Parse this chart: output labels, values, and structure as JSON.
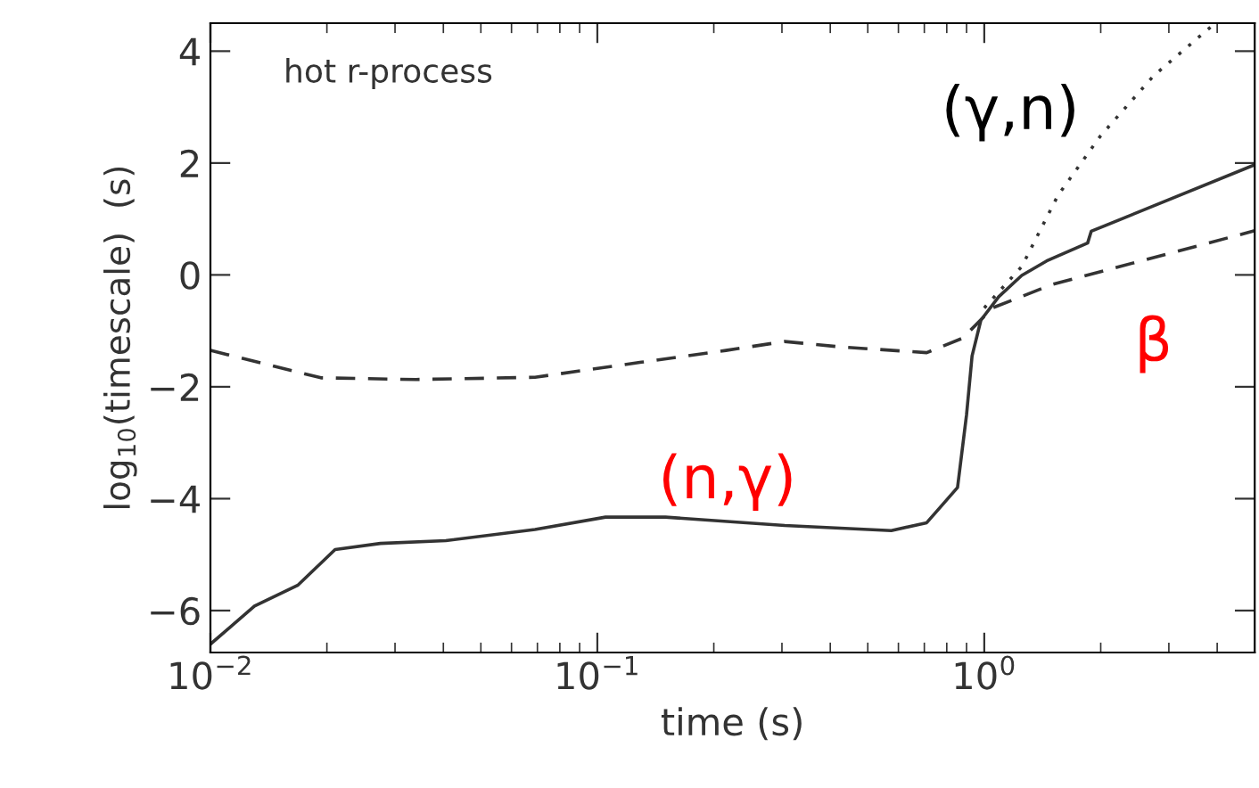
{
  "chart_data": {
    "type": "line",
    "xlabel": "time (s)",
    "ylabel": "log$_{10}$(timescale)  (s)",
    "log": "x",
    "grid": false,
    "xlim": [
      0.01,
      5.0
    ],
    "ylim": [
      -6.75,
      4.5
    ],
    "xticks": [
      {
        "value": 0.01,
        "label": "10$^{−2}$"
      },
      {
        "value": 0.1,
        "label": "10$^{−1}$"
      },
      {
        "value": 1,
        "label": "10$^{0}$"
      }
    ],
    "yticks": [
      {
        "value": -6,
        "label": "−6"
      },
      {
        "value": -4,
        "label": "−4"
      },
      {
        "value": -2,
        "label": "−2"
      },
      {
        "value": 0,
        "label": "0"
      },
      {
        "value": 2,
        "label": "2"
      },
      {
        "value": 4,
        "label": "4"
      }
    ],
    "series": [
      {
        "color": "#333333",
        "line_style": "solid",
        "x": [
          0.01,
          0.013,
          0.0168,
          0.021,
          0.0275,
          0.0406,
          0.069,
          0.105,
          0.15,
          0.305,
          0.575,
          0.71,
          0.853,
          0.9,
          0.93,
          0.98,
          1.09,
          1.25,
          1.45,
          1.85,
          1.89,
          5.0
        ],
        "values": [
          -6.6,
          -5.92,
          -5.55,
          -4.91,
          -4.8,
          -4.75,
          -4.55,
          -4.33,
          -4.33,
          -4.48,
          -4.57,
          -4.43,
          -3.8,
          -2.5,
          -1.45,
          -0.81,
          -0.39,
          -0.01,
          0.25,
          0.57,
          0.78,
          1.97
        ]
      },
      {
        "color": "#333333",
        "line_style": "dashed",
        "x": [
          0.01,
          0.0193,
          0.034,
          0.069,
          0.13,
          0.215,
          0.305,
          0.43,
          0.71,
          0.88,
          1.05,
          1.5,
          2.54,
          5.0
        ],
        "values": [
          -1.35,
          -1.84,
          -1.87,
          -1.83,
          -1.56,
          -1.35,
          -1.19,
          -1.29,
          -1.39,
          -1.13,
          -0.59,
          -0.17,
          0.25,
          0.79
        ]
      },
      {
        "color": "#333333",
        "line_style": "dotted",
        "x": [
          1.0,
          1.25,
          1.55,
          2.0,
          2.74,
          3.89
        ],
        "values": [
          -0.59,
          0.15,
          1.42,
          2.49,
          3.56,
          4.46
        ]
      }
    ],
    "annotations": [
      "hot r-process",
      "(γ,n)",
      "(n,γ)",
      "β"
    ]
  }
}
